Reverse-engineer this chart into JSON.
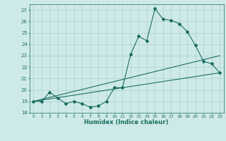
{
  "xlabel": "Humidex (Indice chaleur)",
  "ylabel": "",
  "bg_color": "#ceeae8",
  "grid_color": "#aacfcc",
  "line_color": "#1a6e64",
  "xlim": [
    -0.5,
    23.5
  ],
  "ylim": [
    18,
    27.5
  ],
  "yticks": [
    18,
    19,
    20,
    21,
    22,
    23,
    24,
    25,
    26,
    27
  ],
  "xticks": [
    0,
    1,
    2,
    3,
    4,
    5,
    6,
    7,
    8,
    9,
    10,
    11,
    12,
    13,
    14,
    15,
    16,
    17,
    18,
    19,
    20,
    21,
    22,
    23
  ],
  "series": [
    {
      "x": [
        0,
        1,
        2,
        3,
        4,
        5,
        6,
        7,
        8,
        9,
        10,
        11,
        12,
        13,
        14,
        15,
        16,
        17,
        18,
        19,
        20,
        21,
        22,
        23
      ],
      "y": [
        19.0,
        19.0,
        19.8,
        19.3,
        18.8,
        19.0,
        18.8,
        18.5,
        18.6,
        19.0,
        20.2,
        20.2,
        23.1,
        24.7,
        24.3,
        27.1,
        26.2,
        26.1,
        25.8,
        25.1,
        23.9,
        22.5,
        22.3,
        21.5
      ],
      "marker": "D",
      "markersize": 2.0,
      "linewidth": 0.8
    },
    {
      "x": [
        0,
        23
      ],
      "y": [
        19.0,
        23.0
      ],
      "marker": null,
      "markersize": 0,
      "linewidth": 0.8
    },
    {
      "x": [
        0,
        23
      ],
      "y": [
        19.0,
        21.5
      ],
      "marker": null,
      "markersize": 0,
      "linewidth": 0.8
    }
  ]
}
